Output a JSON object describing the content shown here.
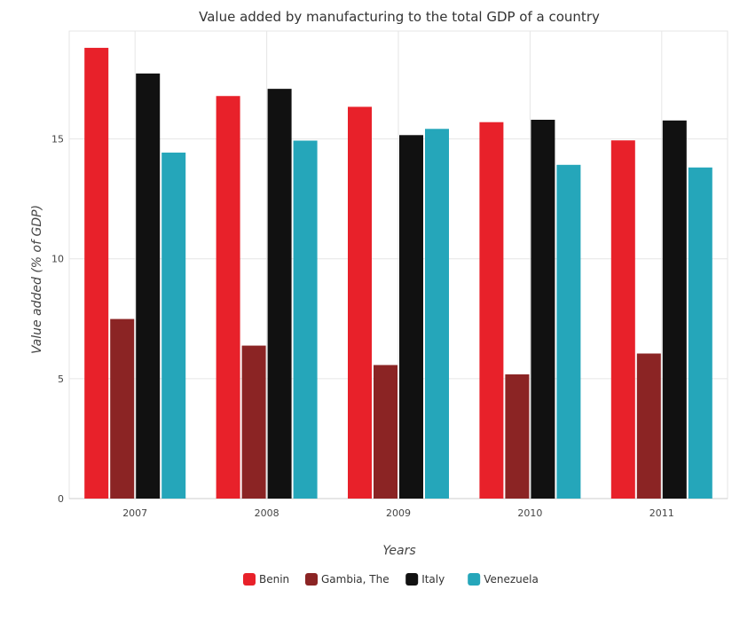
{
  "chart_data": {
    "type": "bar",
    "title": "Value added by manufacturing to the total GDP of a country",
    "xlabel": "Years",
    "ylabel": "Value added (% of GDP)",
    "categories": [
      "2007",
      "2008",
      "2009",
      "2010",
      "2011"
    ],
    "ylim": [
      0,
      19.5
    ],
    "yticks": [
      "0",
      "5",
      "10",
      "15"
    ],
    "grid": true,
    "legend_position": "bottom",
    "series": [
      {
        "name": "Benin",
        "color": "#e8212a",
        "values": [
          18.8,
          16.79,
          16.34,
          15.7,
          14.94
        ]
      },
      {
        "name": "Gambia, The",
        "color": "#8b2424",
        "values": [
          7.49,
          6.38,
          5.57,
          5.18,
          6.05
        ]
      },
      {
        "name": "Italy",
        "color": "#111111",
        "values": [
          17.73,
          17.09,
          15.16,
          15.8,
          15.77
        ]
      },
      {
        "name": "Venezuela",
        "color": "#25a6ba",
        "values": [
          14.43,
          14.93,
          15.42,
          13.92,
          13.81
        ]
      }
    ]
  }
}
